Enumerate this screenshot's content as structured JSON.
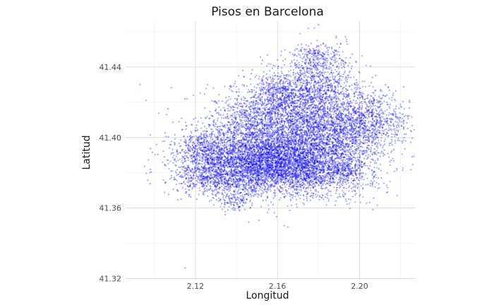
{
  "chart_data": {
    "type": "scatter",
    "title": "Pisos en Barcelona",
    "xlabel": "Longitud",
    "ylabel": "Latitud",
    "xlim": [
      2.086,
      2.227
    ],
    "ylim": [
      41.319,
      41.466
    ],
    "x_ticks": [
      2.12,
      2.16,
      2.2
    ],
    "x_tick_labels": [
      "2.12",
      "2.16",
      "2.20"
    ],
    "y_ticks": [
      41.32,
      41.36,
      41.4,
      41.44
    ],
    "y_tick_labels": [
      "41.32",
      "41.36",
      "41.40",
      "41.44"
    ],
    "grid": true,
    "legend": "none",
    "point_color": "#0000ff",
    "point_alpha": 0.35,
    "approx_point_count": 12000,
    "clusters": [
      {
        "lon": 2.17,
        "lat": 41.382,
        "slon": 0.018,
        "slat": 0.008,
        "w": 0.2
      },
      {
        "lon": 2.155,
        "lat": 41.388,
        "slon": 0.016,
        "slat": 0.009,
        "w": 0.14
      },
      {
        "lon": 2.14,
        "lat": 41.392,
        "slon": 0.014,
        "slat": 0.01,
        "w": 0.09
      },
      {
        "lon": 2.172,
        "lat": 41.403,
        "slon": 0.015,
        "slat": 0.01,
        "w": 0.11
      },
      {
        "lon": 2.188,
        "lat": 41.4,
        "slon": 0.012,
        "slat": 0.009,
        "w": 0.07
      },
      {
        "lon": 2.168,
        "lat": 41.418,
        "slon": 0.014,
        "slat": 0.009,
        "w": 0.08
      },
      {
        "lon": 2.18,
        "lat": 41.43,
        "slon": 0.01,
        "slat": 0.008,
        "w": 0.06
      },
      {
        "lon": 2.205,
        "lat": 41.41,
        "slon": 0.01,
        "slat": 0.008,
        "w": 0.06
      },
      {
        "lon": 2.13,
        "lat": 41.378,
        "slon": 0.012,
        "slat": 0.006,
        "w": 0.06
      },
      {
        "lon": 2.148,
        "lat": 41.412,
        "slon": 0.01,
        "slat": 0.008,
        "w": 0.04
      },
      {
        "lon": 2.124,
        "lat": 41.392,
        "slon": 0.007,
        "slat": 0.006,
        "w": 0.03
      },
      {
        "lon": 2.18,
        "lat": 41.446,
        "slon": 0.007,
        "slat": 0.004,
        "w": 0.02
      },
      {
        "lon": 2.14,
        "lat": 41.364,
        "slon": 0.004,
        "slat": 0.003,
        "w": 0.01
      },
      {
        "lon": 2.16,
        "lat": 41.426,
        "slon": 0.006,
        "slat": 0.005,
        "w": 0.02
      },
      {
        "lon": 2.193,
        "lat": 41.382,
        "slon": 0.004,
        "slat": 0.003,
        "w": 0.01
      }
    ],
    "outliers": [
      [
        2.093,
        41.43
      ],
      [
        2.096,
        41.421
      ],
      [
        2.101,
        41.396
      ],
      [
        2.104,
        41.386
      ],
      [
        2.106,
        41.413
      ],
      [
        2.11,
        41.387
      ],
      [
        2.116,
        41.422
      ],
      [
        2.119,
        41.424
      ],
      [
        2.115,
        41.326
      ],
      [
        2.146,
        41.352
      ],
      [
        2.151,
        41.353
      ],
      [
        2.175,
        41.462
      ],
      [
        2.18,
        41.464
      ],
      [
        2.171,
        41.459
      ],
      [
        2.118,
        41.377
      ],
      [
        2.112,
        41.409
      ]
    ]
  }
}
